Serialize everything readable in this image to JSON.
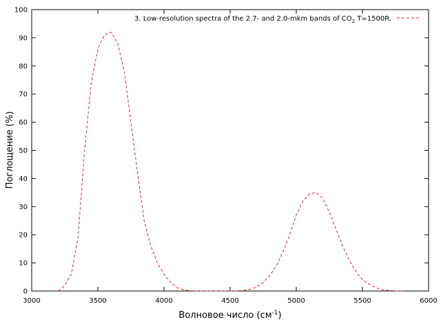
{
  "chart_data": {
    "type": "line",
    "title": "",
    "xlabel": "Волновое число (см",
    "xlabel_sup": "-1",
    "xlabel_tail": ")",
    "ylabel": "Поглощение (%)",
    "xlim": [
      3000,
      6000
    ],
    "ylim": [
      0,
      100
    ],
    "xticks": [
      3000,
      3500,
      4000,
      4500,
      5000,
      5500,
      6000
    ],
    "yticks": [
      0,
      10,
      20,
      30,
      40,
      50,
      60,
      70,
      80,
      90,
      100
    ],
    "grid": false,
    "legend_position": "top-right",
    "series": [
      {
        "name_pre": "3. Low-resolution spectra of the 2.7- and 2.0-mkm  bands of CO",
        "name_sub": "2",
        "name_post": " T=1500R.",
        "color": "#e41a1c",
        "line_style": "dashed",
        "x": [
          3200,
          3250,
          3300,
          3350,
          3400,
          3450,
          3500,
          3550,
          3600,
          3650,
          3700,
          3750,
          3800,
          3850,
          3900,
          3950,
          4000,
          4050,
          4100,
          4150,
          4200,
          4250,
          4300,
          4350,
          4400,
          4450,
          4500,
          4550,
          4600,
          4650,
          4700,
          4750,
          4800,
          4850,
          4900,
          4950,
          5000,
          5050,
          5100,
          5150,
          5200,
          5250,
          5300,
          5350,
          5400,
          5450,
          5500,
          5550,
          5600,
          5650,
          5700,
          5750,
          5800
        ],
        "y": [
          0,
          2,
          6,
          19,
          50,
          74,
          86,
          91,
          92,
          88,
          78,
          60,
          42,
          25,
          16,
          10,
          6,
          3,
          1.2,
          0.4,
          0.1,
          0,
          0,
          0,
          0,
          0,
          0,
          0,
          0.2,
          0.6,
          1.5,
          3,
          5.5,
          9,
          14,
          20,
          27,
          32,
          34.5,
          35,
          33,
          28,
          22,
          16,
          11,
          7,
          4,
          2.5,
          1.2,
          0.5,
          0.2,
          0,
          0
        ]
      }
    ]
  }
}
